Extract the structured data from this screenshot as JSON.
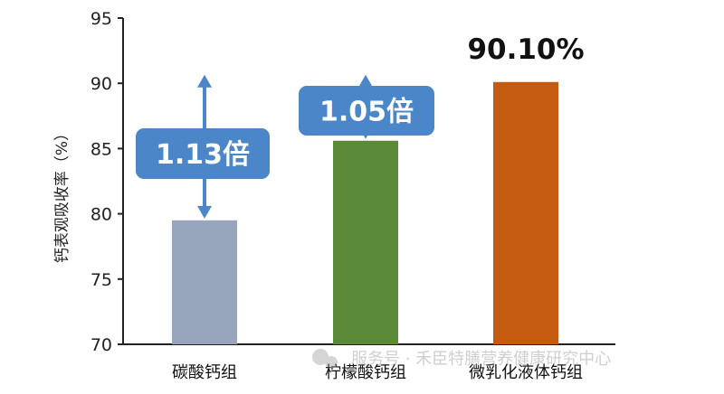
{
  "chart_data": {
    "type": "bar",
    "title": "",
    "xlabel": "",
    "ylabel": "钙表观吸收率（%）",
    "ylim": [
      70,
      95
    ],
    "yticks": [
      70,
      75,
      80,
      85,
      90,
      95
    ],
    "grid": false,
    "categories": [
      "碳酸钙组",
      "柠檬酸钙组",
      "微乳化液体钙组"
    ],
    "values": [
      79.5,
      85.6,
      90.1
    ],
    "colors": [
      "#97a5bd",
      "#5a8a37",
      "#c55a11"
    ],
    "data_labels": [
      "",
      "",
      "90.10%"
    ],
    "annotations": [
      {
        "text": "1.13倍",
        "category": "碳酸钙组",
        "from": 79.5,
        "to": 90.1,
        "color": "#4a86c8"
      },
      {
        "text": "1.05倍",
        "category": "柠檬酸钙组",
        "from": 85.6,
        "to": 90.1,
        "color": "#4a86c8"
      }
    ]
  },
  "watermark": "服务号 · 禾臣特膳营养健康研究中心"
}
